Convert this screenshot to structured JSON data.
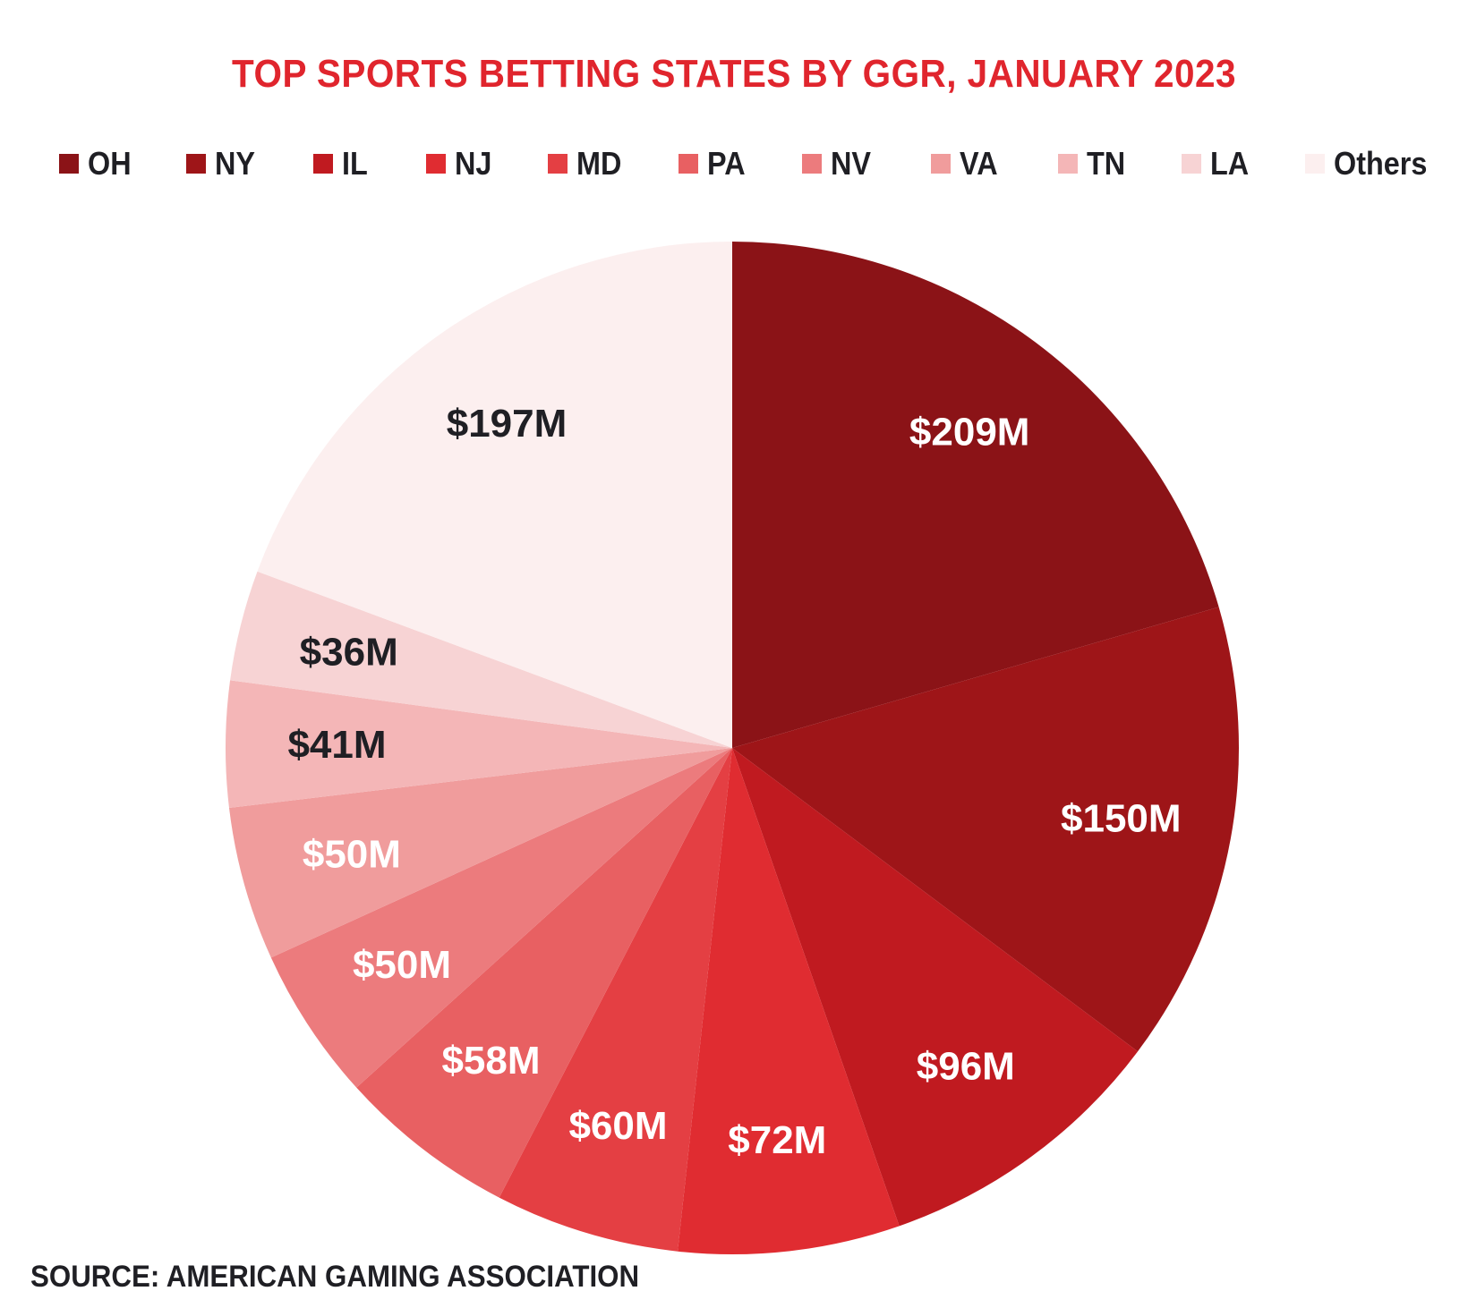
{
  "chart_data": {
    "type": "pie",
    "title": "TOP SPORTS BETTING STATES BY GGR, JANUARY 2023",
    "categories": [
      "OH",
      "NY",
      "IL",
      "NJ",
      "MD",
      "PA",
      "NV",
      "VA",
      "TN",
      "LA",
      "Others"
    ],
    "values": [
      209,
      150,
      96,
      72,
      60,
      58,
      50,
      50,
      41,
      36,
      197
    ],
    "value_labels": [
      "$209M",
      "$150M",
      "$96M",
      "$72M",
      "$60M",
      "$58M",
      "$50M",
      "$50M",
      "$41M",
      "$36M",
      "$197M"
    ],
    "unit": "$M",
    "colors": [
      "#8b1317",
      "#9e1518",
      "#c01a20",
      "#e02c31",
      "#e43f43",
      "#e86062",
      "#ec7b7d",
      "#f09c9c",
      "#f4b6b7",
      "#f7d3d4",
      "#fcefef"
    ],
    "label_colors": [
      "#ffffff",
      "#ffffff",
      "#ffffff",
      "#ffffff",
      "#ffffff",
      "#ffffff",
      "#ffffff",
      "#ffffff",
      "#1f1f24",
      "#1f1f24",
      "#1f1f24"
    ],
    "legend_position": "top",
    "start_angle": "12 o'clock, clockwise"
  },
  "source": "SOURCE: AMERICAN GAMING ASSOCIATION"
}
